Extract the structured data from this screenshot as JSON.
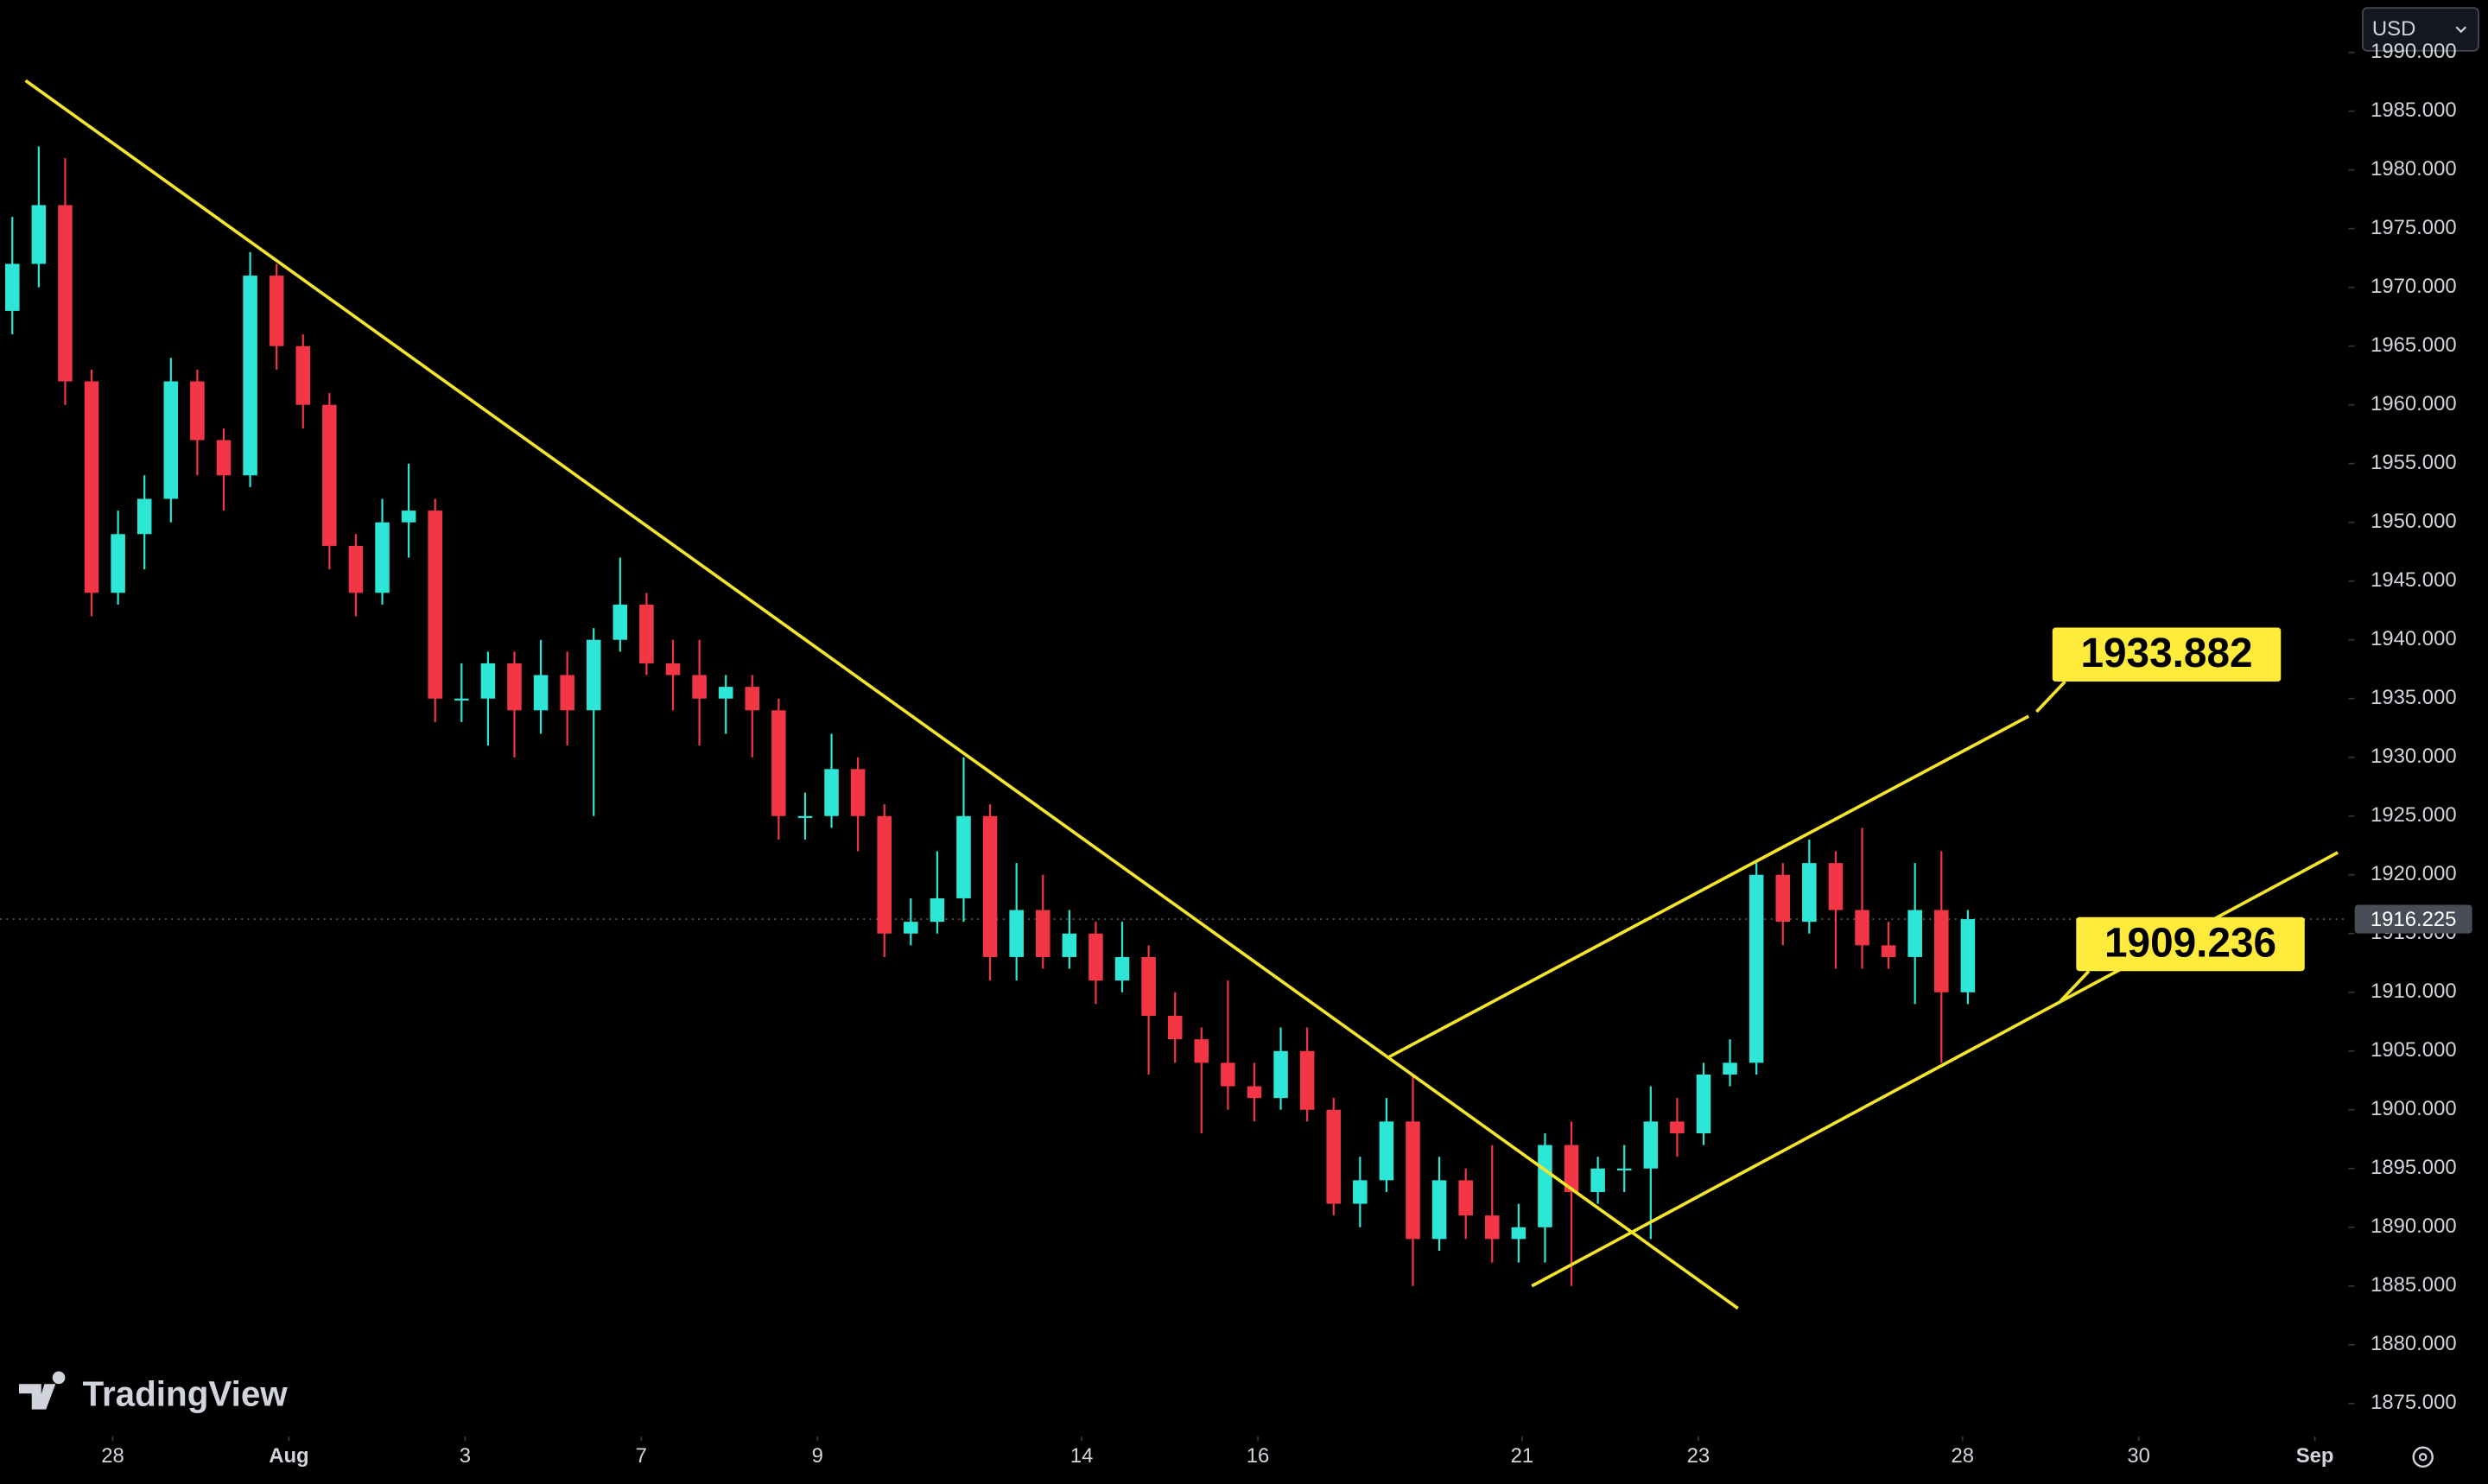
{
  "chart_data": {
    "type": "candlestick",
    "x": [
      -1.14,
      -0.84,
      -0.54,
      -0.24,
      0.06,
      0.36,
      0.66,
      0.96,
      1.26,
      1.56,
      1.86,
      2.16,
      2.46,
      2.76,
      3.06,
      3.36,
      3.66,
      3.96,
      4.26,
      4.56,
      4.86,
      5.16,
      5.46,
      5.76,
      6.06,
      6.36,
      6.66,
      6.96,
      7.26,
      7.56,
      7.86,
      8.16,
      8.46,
      8.76,
      9.06,
      9.36,
      9.66,
      9.96,
      10.26,
      10.56,
      10.86,
      11.16,
      11.46,
      11.76,
      12.06,
      12.36,
      12.66,
      12.96,
      13.26,
      13.56,
      13.86,
      14.16,
      14.46,
      14.76,
      15.06,
      15.36,
      15.66,
      15.96,
      16.26,
      16.56,
      16.86,
      17.16,
      17.46,
      17.76,
      18.06,
      18.36,
      18.66,
      18.96,
      19.26,
      19.56,
      19.86,
      20.16,
      20.46,
      20.76,
      21.06
    ],
    "open": [
      1968,
      1972,
      1977,
      1962,
      1944,
      1949,
      1952,
      1962,
      1957,
      1954,
      1971,
      1965,
      1960,
      1948,
      1944,
      1950,
      1951,
      1935,
      1935,
      1938,
      1934,
      1937,
      1934,
      1940,
      1943,
      1938,
      1937,
      1935,
      1936,
      1934,
      1925,
      1925,
      1929,
      1925,
      1915,
      1916,
      1918,
      1925,
      1913,
      1917,
      1913,
      1915,
      1911,
      1913,
      1908,
      1906,
      1904,
      1902,
      1901,
      1905,
      1900,
      1892,
      1894,
      1899,
      1889,
      1894,
      1891,
      1889,
      1890,
      1897,
      1893,
      1895,
      1895,
      1899,
      1898,
      1903,
      1904,
      1920,
      1916,
      1921,
      1917,
      1914,
      1913,
      1917,
      1910
    ],
    "high": [
      1976,
      1982,
      1981,
      1963,
      1951,
      1954,
      1964,
      1963,
      1958,
      1973,
      1972,
      1966,
      1961,
      1949,
      1952,
      1955,
      1952,
      1938,
      1939,
      1939,
      1940,
      1939,
      1941,
      1947,
      1944,
      1940,
      1940,
      1937,
      1937,
      1935,
      1927,
      1932,
      1930,
      1926,
      1918,
      1922,
      1930,
      1926,
      1921,
      1920,
      1917,
      1916,
      1916,
      1914,
      1910,
      1907,
      1911,
      1904,
      1907,
      1907,
      1901,
      1896,
      1901,
      1903,
      1896,
      1895,
      1897,
      1892,
      1898,
      1899,
      1896,
      1897,
      1902,
      1901,
      1904,
      1906,
      1921,
      1921,
      1923,
      1922,
      1924,
      1916,
      1921,
      1922,
      1917
    ],
    "low": [
      1966,
      1970,
      1960,
      1942,
      1943,
      1946,
      1950,
      1954,
      1951,
      1953,
      1963,
      1958,
      1946,
      1942,
      1943,
      1947,
      1933,
      1933,
      1931,
      1930,
      1932,
      1931,
      1925,
      1939,
      1937,
      1934,
      1931,
      1932,
      1930,
      1923,
      1923,
      1924,
      1922,
      1913,
      1914,
      1915,
      1916,
      1911,
      1911,
      1912,
      1912,
      1909,
      1910,
      1903,
      1904,
      1898,
      1900,
      1899,
      1900,
      1899,
      1891,
      1890,
      1893,
      1885,
      1888,
      1889,
      1887,
      1887,
      1887,
      1885,
      1892,
      1893,
      1889,
      1896,
      1897,
      1902,
      1903,
      1914,
      1915,
      1912,
      1912,
      1912,
      1909,
      1904,
      1909
    ],
    "close": [
      1972,
      1977,
      1962,
      1944,
      1949,
      1952,
      1962,
      1957,
      1954,
      1971,
      1965,
      1960,
      1948,
      1944,
      1950,
      1951,
      1935,
      1935,
      1938,
      1934,
      1937,
      1934,
      1940,
      1943,
      1938,
      1937,
      1935,
      1936,
      1934,
      1925,
      1925,
      1929,
      1925,
      1915,
      1916,
      1918,
      1925,
      1913,
      1917,
      1913,
      1915,
      1911,
      1913,
      1908,
      1906,
      1904,
      1902,
      1901,
      1905,
      1900,
      1892,
      1894,
      1899,
      1889,
      1894,
      1891,
      1889,
      1890,
      1897,
      1893,
      1895,
      1895,
      1899,
      1898,
      1903,
      1904,
      1920,
      1916,
      1921,
      1917,
      1914,
      1913,
      1917,
      1910,
      1916.225
    ],
    "up_color": "#2ee6d6",
    "down_color": "#f23645",
    "trendline_color": "#f5e52a",
    "xlim": [
      -1.28,
      25.38
    ],
    "xticks": [
      {
        "value": 0,
        "label": "28"
      },
      {
        "value": 2,
        "label": "Aug"
      },
      {
        "value": 4,
        "label": "3"
      },
      {
        "value": 6,
        "label": "7"
      },
      {
        "value": 8,
        "label": "9"
      },
      {
        "value": 11,
        "label": "14"
      },
      {
        "value": 13,
        "label": "16"
      },
      {
        "value": 16,
        "label": "21"
      },
      {
        "value": 18,
        "label": "23"
      },
      {
        "value": 21,
        "label": "28"
      },
      {
        "value": 23,
        "label": "30"
      },
      {
        "value": 25,
        "label": "Sep"
      }
    ],
    "ylim": [
      1872.2,
      1994.46
    ],
    "yticks": [
      {
        "value": 1875,
        "label": "1875.000"
      },
      {
        "value": 1880,
        "label": "1880.000"
      },
      {
        "value": 1885,
        "label": "1885.000"
      },
      {
        "value": 1890,
        "label": "1890.000"
      },
      {
        "value": 1895,
        "label": "1895.000"
      },
      {
        "value": 1900,
        "label": "1900.000"
      },
      {
        "value": 1905,
        "label": "1905.000"
      },
      {
        "value": 1910,
        "label": "1910.000"
      },
      {
        "value": 1915,
        "label": "1915.000"
      },
      {
        "value": 1920,
        "label": "1920.000"
      },
      {
        "value": 1925,
        "label": "1925.000"
      },
      {
        "value": 1930,
        "label": "1930.000"
      },
      {
        "value": 1935,
        "label": "1935.000"
      },
      {
        "value": 1940,
        "label": "1940.000"
      },
      {
        "value": 1945,
        "label": "1945.000"
      },
      {
        "value": 1950,
        "label": "1950.000"
      },
      {
        "value": 1955,
        "label": "1955.000"
      },
      {
        "value": 1960,
        "label": "1960.000"
      },
      {
        "value": 1965,
        "label": "1965.000"
      },
      {
        "value": 1970,
        "label": "1970.000"
      },
      {
        "value": 1975,
        "label": "1975.000"
      },
      {
        "value": 1980,
        "label": "1980.000"
      },
      {
        "value": 1985,
        "label": "1985.000"
      },
      {
        "value": 1990,
        "label": "1990.000"
      }
    ],
    "trendlines": [
      {
        "x": [
          -0.99,
          18.45
        ],
        "y": [
          1987.6,
          1883.1
        ]
      },
      {
        "x": [
          14.49,
          21.75
        ],
        "y": [
          1904.5,
          1933.5
        ]
      },
      {
        "x": [
          16.11,
          25.26
        ],
        "y": [
          1885.0,
          1921.9
        ]
      }
    ],
    "annotations": [
      {
        "x": 21.84,
        "value": 1933.882
      },
      {
        "x": 22.11,
        "value": 1909.236
      }
    ]
  },
  "ui": {
    "currency": "USD",
    "brand": "TradingView"
  }
}
